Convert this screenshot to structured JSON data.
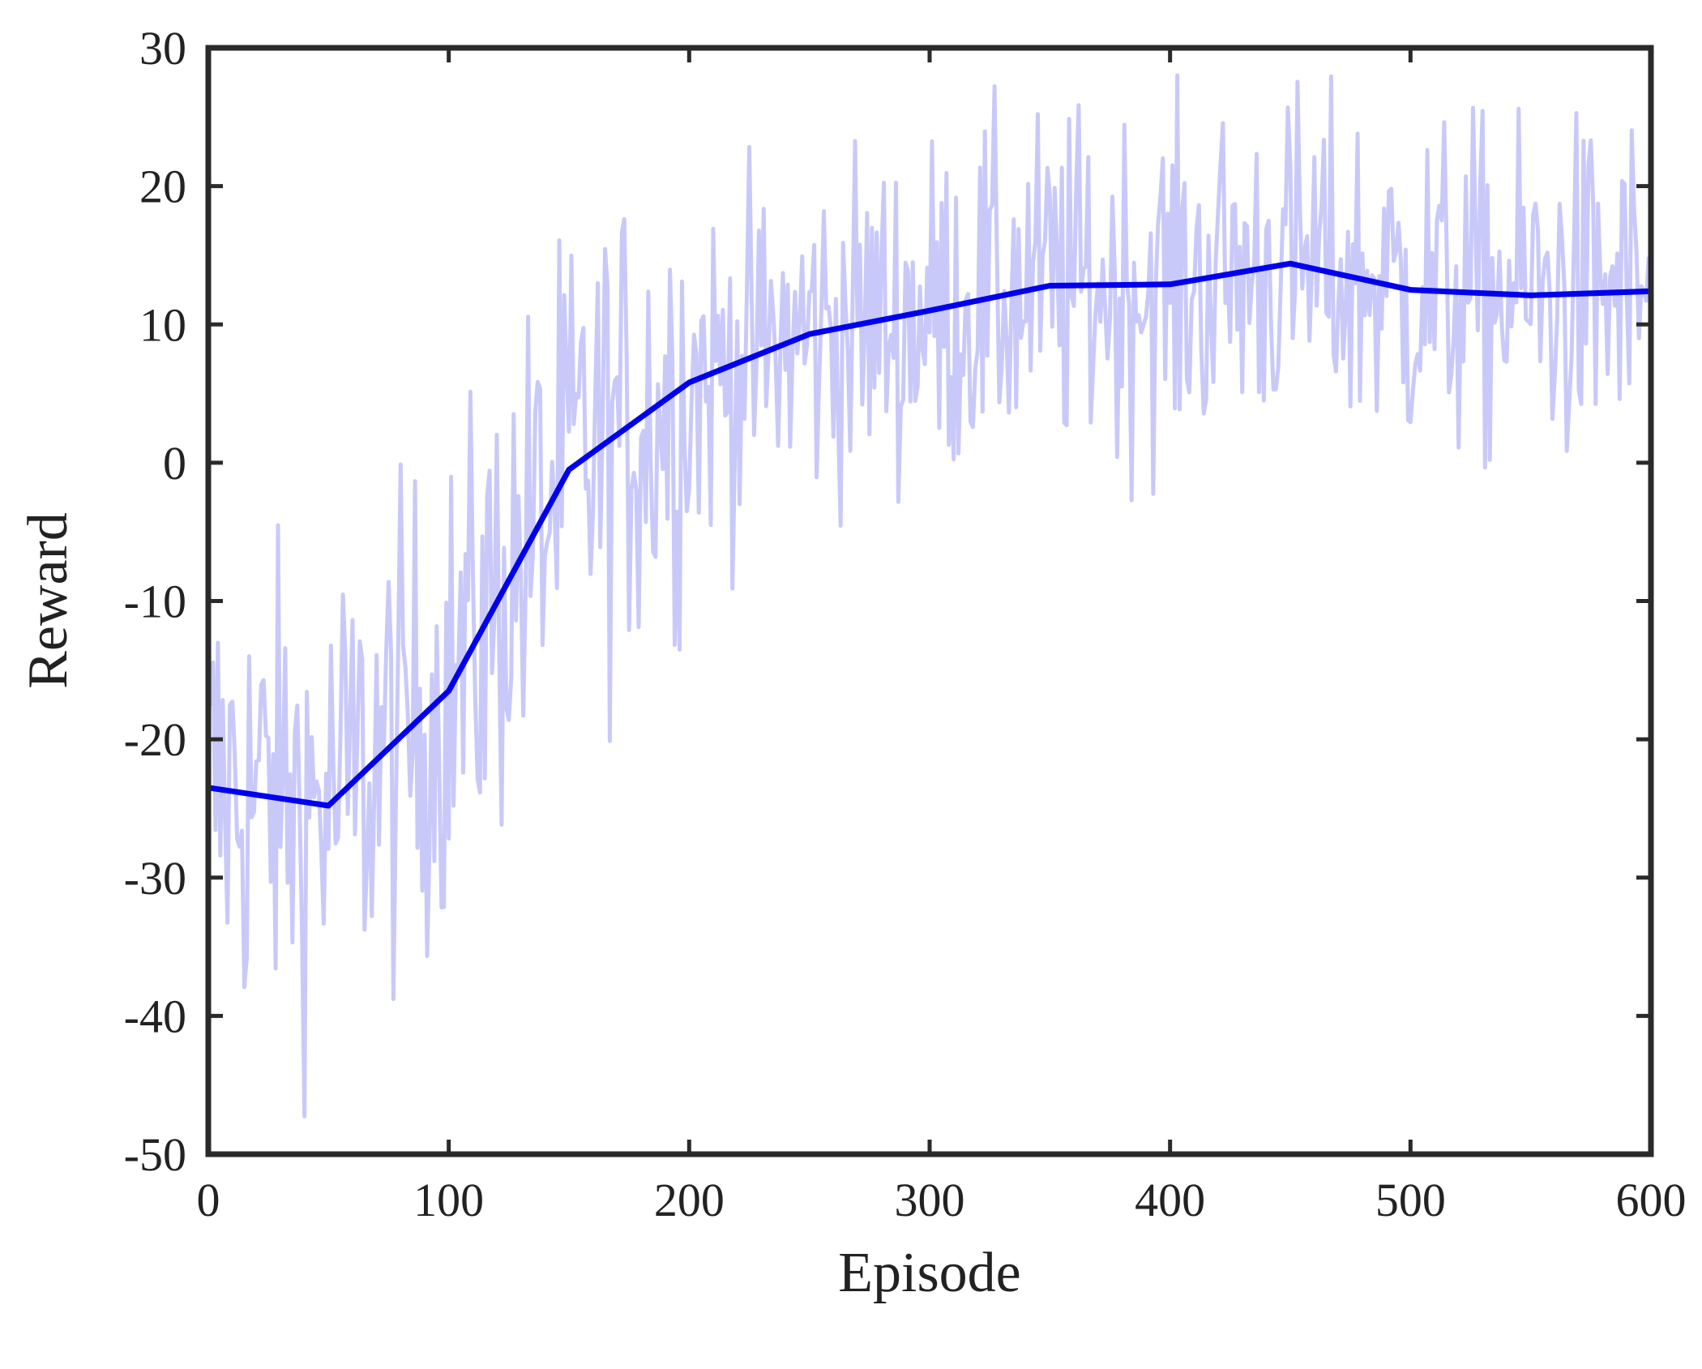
{
  "chart_data": {
    "type": "line",
    "title": "",
    "xlabel": "Episode",
    "ylabel": "Reward",
    "xlim": [
      0,
      600
    ],
    "ylim": [
      -50,
      30
    ],
    "xticks": [
      0,
      100,
      200,
      300,
      400,
      500,
      600
    ],
    "yticks": [
      -50,
      -40,
      -30,
      -20,
      -10,
      0,
      10,
      20,
      30
    ],
    "grid": false,
    "legend": "none",
    "series": [
      {
        "role": "raw",
        "color": "#c9c9f9",
        "noise": 7,
        "x": [
          0,
          50,
          100,
          150,
          200,
          250,
          300,
          350,
          400,
          450,
          500,
          550,
          600
        ],
        "values": [
          -23.5,
          -24.8,
          -16.5,
          -0.5,
          5.8,
          9.3,
          11.0,
          12.8,
          12.9,
          14.4,
          12.5,
          12.1,
          12.4
        ]
      },
      {
        "role": "smoothed",
        "color": "#0000ee",
        "x": [
          0,
          50,
          100,
          150,
          200,
          250,
          300,
          350,
          400,
          450,
          500,
          550,
          600
        ],
        "values": [
          -23.5,
          -24.8,
          -16.5,
          -0.5,
          5.8,
          9.3,
          11.0,
          12.8,
          12.9,
          14.4,
          12.5,
          12.1,
          12.4
        ]
      }
    ]
  }
}
